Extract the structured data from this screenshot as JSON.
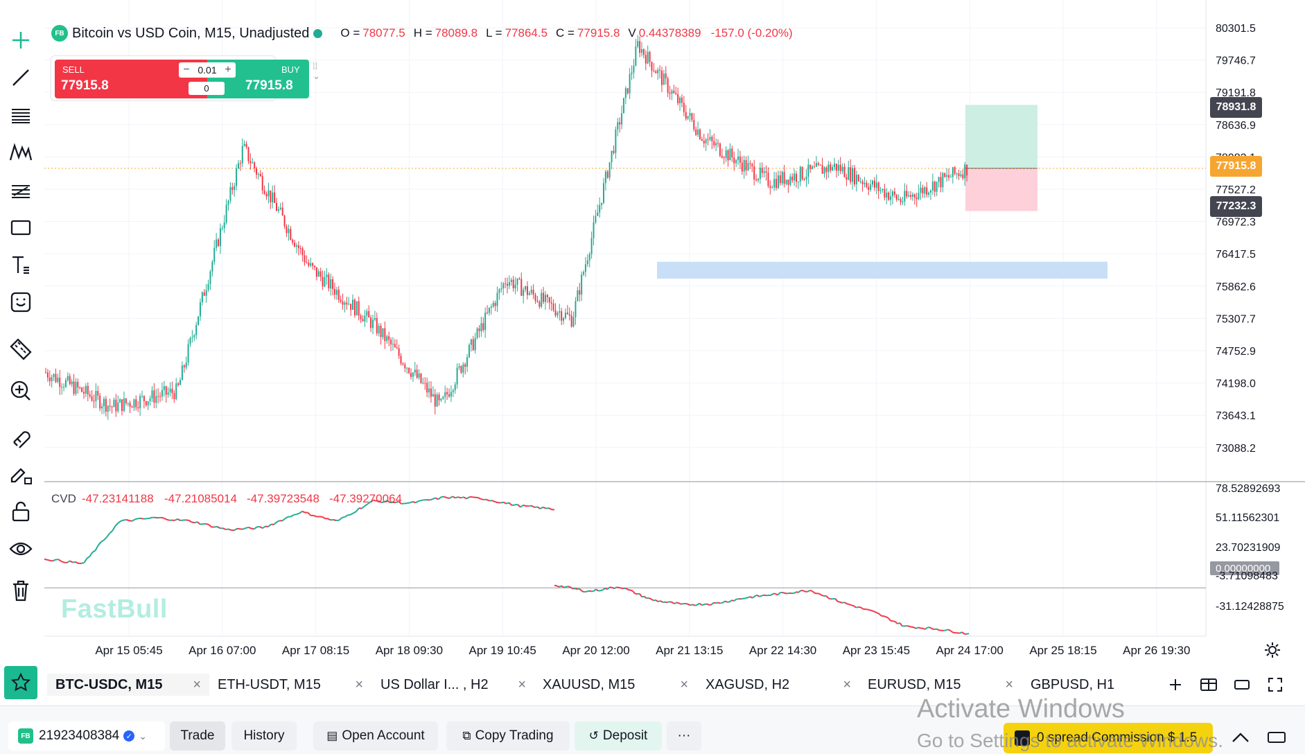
{
  "legend": {
    "badge": "FB",
    "symbol": "Bitcoin vs USD Coin, M15, Unadjusted",
    "open_label": "O =",
    "open": "78077.5",
    "high_label": "H =",
    "high": "78089.8",
    "low_label": "L =",
    "low": "77864.5",
    "close_label": "C =",
    "close": "77915.8",
    "volume_label": "V",
    "volume": "0.44378389",
    "change": "-157.0 (-0.20%)"
  },
  "trade_widget": {
    "sell_label": "SELL",
    "sell_price": "77915.8",
    "buy_label": "BUY",
    "buy_price": "77915.8",
    "quantity": "0.01",
    "minus": "−",
    "plus": "+",
    "spread": "0"
  },
  "price_axis": [
    "80301.5",
    "79746.7",
    "79191.8",
    "78636.9",
    "78082.1",
    "77527.2",
    "76972.3",
    "76417.5",
    "75862.6",
    "75307.7",
    "74752.9",
    "74198.0",
    "73643.1",
    "73088.2"
  ],
  "price_tags": {
    "take_profit": "78931.8",
    "current": "77915.8",
    "stop_loss": "77232.3"
  },
  "cvd": {
    "label": "CVD",
    "values": [
      "-47.23141188",
      "-47.21085014",
      "-47.39723548",
      "-47.39270064"
    ],
    "axis": [
      "78.52892693",
      "51.11562301",
      "23.70231909",
      "0.00000000",
      "-3.71098483",
      "-31.12428875"
    ]
  },
  "time_axis": [
    "Apr 15 05:45",
    "Apr 16 07:00",
    "Apr 17 08:15",
    "Apr 18 09:30",
    "Apr 19 10:45",
    "Apr 20 12:00",
    "Apr 21 13:15",
    "Apr 22 14:30",
    "Apr 23 15:45",
    "Apr 24 17:00",
    "Apr 25 18:15",
    "Apr 26 19:30"
  ],
  "watermark": "FastBull",
  "tabs": [
    {
      "label": "BTC-USDC, M15",
      "active": true
    },
    {
      "label": "ETH-USDT, M15",
      "active": false
    },
    {
      "label": "US Dollar I... , H2",
      "active": false
    },
    {
      "label": "XAUUSD, M15",
      "active": false
    },
    {
      "label": "XAGUSD, H2",
      "active": false
    },
    {
      "label": "EURUSD, M15",
      "active": false
    },
    {
      "label": "GBPUSD, H1",
      "active": false
    }
  ],
  "tab_close": "×",
  "bottom_bar": {
    "account_badge": "FB",
    "account_id": "21923408384",
    "trade": "Trade",
    "history": "History",
    "open_account": "Open Account",
    "copy_trading": "Copy Trading",
    "deposit": "Deposit",
    "more": "···",
    "promo": "0 spread Commission $ 1.5"
  },
  "activate_windows": {
    "title": "Activate Windows",
    "subtitle": "Go to Settings to activate Windows."
  },
  "colors": {
    "up": "#22ab94",
    "down": "#f23645",
    "accent": "#1ab98f",
    "zone": "#c9def7",
    "tp_zone": "#cdeee2",
    "sl_zone": "#fdd0da",
    "current_tag": "#f7a531",
    "dark_tag": "#434651"
  },
  "chart_data": {
    "type": "candlestick",
    "timeframe": "M15",
    "x": [
      "Apr 15 05:45",
      "Apr 16 07:00",
      "Apr 17 08:15",
      "Apr 18 09:30",
      "Apr 19 10:45",
      "Apr 20 12:00",
      "Apr 21 13:15",
      "Apr 22 14:30",
      "Apr 23 15:45",
      "Apr 24 17:00"
    ],
    "close_path": [
      74650,
      74100,
      74350,
      78250,
      76350,
      75400,
      74100,
      76150,
      75500,
      79900,
      78400,
      77700,
      77950,
      77400,
      77915.8
    ],
    "ylim": [
      72900,
      80500
    ],
    "zone": [
      76150,
      76420
    ],
    "take_profit": 78931.8,
    "entry": 77915.8,
    "stop_loss": 77232.3,
    "cvd_path_upper": [
      23.7,
      20.0,
      55.0,
      58.0,
      55.0,
      48.0,
      50.0,
      63.0,
      55.0,
      72.0,
      70.0,
      75.0,
      74.0,
      68.0,
      65.0
    ],
    "cvd_path_lower": [
      2.0,
      -3.0,
      1.0,
      -10.0,
      -14.0,
      -13.0,
      -8.0,
      -5.0,
      -2.0,
      -12.0,
      -20.0,
      -32.0,
      -34.0,
      -38.0
    ],
    "cvd_ylim": [
      -40,
      85
    ]
  }
}
